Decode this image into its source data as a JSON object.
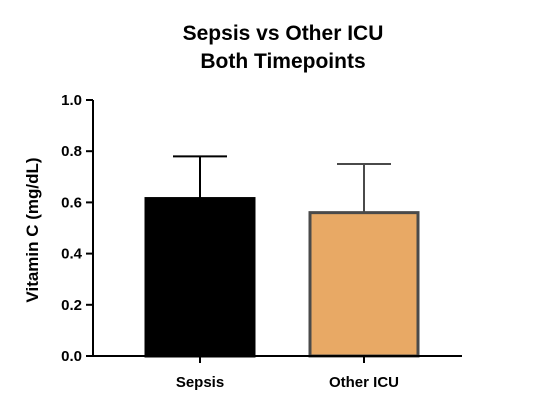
{
  "chart_data": {
    "type": "bar",
    "title_lines": [
      "Sepsis vs Other ICU",
      "Both Timepoints"
    ],
    "ylabel": "Vitamin C (mg/dL)",
    "xlabel": "",
    "categories": [
      "Sepsis",
      "Other ICU"
    ],
    "values": [
      0.615,
      0.56
    ],
    "error_upper": [
      0.78,
      0.75
    ],
    "colors": [
      "#000000",
      "#e8a965"
    ],
    "ylim": [
      0,
      1.0
    ],
    "yticks": [
      "0.0",
      "0.2",
      "0.4",
      "0.6",
      "0.8",
      "1.0"
    ],
    "grid": false
  }
}
